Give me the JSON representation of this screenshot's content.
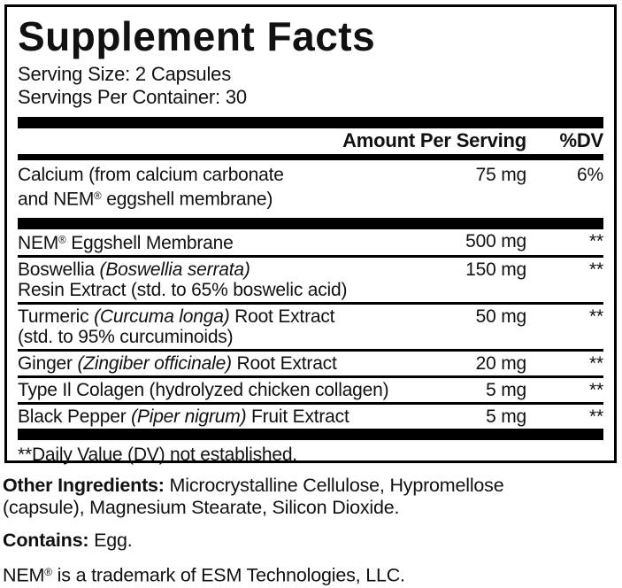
{
  "label": {
    "title": "Supplement Facts",
    "serving_size": "Serving Size: 2 Capsules",
    "servings_per_container": "Servings Per Container: 30",
    "header": {
      "amount": "Amount Per Serving",
      "dv": "%DV"
    },
    "calcium_row": {
      "pre": "Calcium (from calcium carbonate",
      "latin": "",
      "post": "",
      "line2": "and NEM® eggshell membrane)",
      "amount": "75 mg",
      "dv": "6%"
    },
    "rows": [
      {
        "pre": "NEM® Eggshell Membrane",
        "latin": "",
        "post": "",
        "line2": "",
        "amount": "500 mg",
        "dv": "**"
      },
      {
        "pre": "Boswellia ",
        "latin": "(Boswellia serrata)",
        "post": "",
        "line2": "Resin Extract (std. to 65% boswelic acid)",
        "amount": "150 mg",
        "dv": "**"
      },
      {
        "pre": "Turmeric ",
        "latin": "(Curcuma longa)",
        "post": " Root Extract",
        "line2": "(std. to 95% curcuminoids)",
        "amount": "50 mg",
        "dv": "**"
      },
      {
        "pre": "Ginger ",
        "latin": "(Zingiber officinale)",
        "post": " Root Extract",
        "line2": "",
        "amount": "20 mg",
        "dv": "**"
      },
      {
        "pre": "Type Il Colagen (hydrolyzed chicken collagen)",
        "latin": "",
        "post": "",
        "line2": "",
        "amount": "5 mg",
        "dv": "**"
      },
      {
        "pre": "Black Pepper ",
        "latin": "(Piper nigrum)",
        "post": " Fruit Extract",
        "line2": "",
        "amount": "5 mg",
        "dv": "**"
      }
    ],
    "footnote": "**Daily Value (DV) not established."
  },
  "below": {
    "other_label": "Other Ingredients:",
    "other_text": "Microcrystalline Cellulose, Hypromellose (capsule), Magnesium Stearate, Silicon Dioxide.",
    "contains_label": "Contains:",
    "contains_text": "Egg.",
    "trademark": "NEM® is a trademark of ESM Technologies, LLC."
  },
  "colors": {
    "text": "#111111",
    "bar": "#000000",
    "background": "#ffffff"
  }
}
